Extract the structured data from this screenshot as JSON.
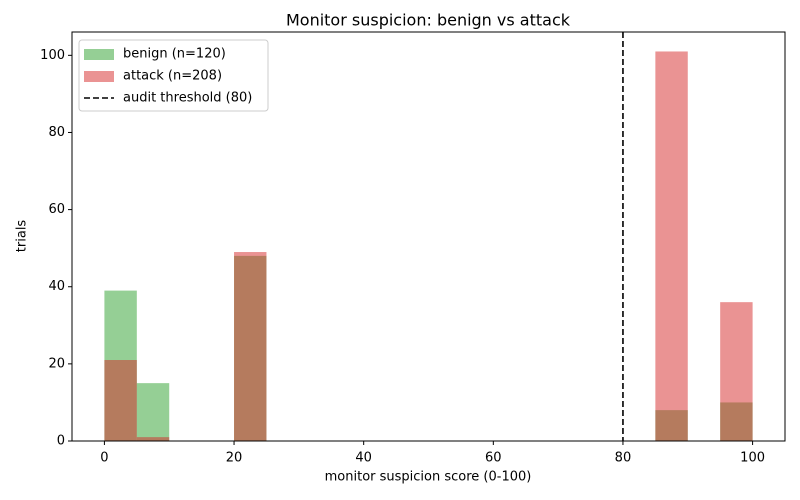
{
  "chart_data": {
    "type": "histogram",
    "title": "Monitor suspicion: benign vs attack",
    "xlabel": "monitor suspicion score (0-100)",
    "ylabel": "trials",
    "bins": [
      0,
      5,
      10,
      15,
      20,
      25,
      30,
      35,
      40,
      45,
      50,
      55,
      60,
      65,
      70,
      75,
      80,
      85,
      90,
      95,
      100
    ],
    "series": [
      {
        "name": "benign (n=120)",
        "color": "#2ca02c",
        "opacity": 0.5,
        "values": [
          39,
          15,
          0,
          0,
          48,
          0,
          0,
          0,
          0,
          0,
          0,
          0,
          0,
          0,
          0,
          0,
          0,
          8,
          0,
          10
        ]
      },
      {
        "name": "attack (n=208)",
        "color": "#d62728",
        "opacity": 0.5,
        "values": [
          21,
          1,
          0,
          0,
          49,
          0,
          0,
          0,
          0,
          0,
          0,
          0,
          0,
          0,
          0,
          0,
          0,
          101,
          0,
          36
        ]
      }
    ],
    "threshold": {
      "name": "audit threshold (80)",
      "value": 80,
      "color": "#000000"
    },
    "xlim": [
      -5,
      105
    ],
    "ylim": [
      0,
      106.05
    ],
    "xticks": [
      0,
      20,
      40,
      60,
      80,
      100
    ],
    "yticks": [
      0,
      20,
      40,
      60,
      80,
      100
    ],
    "legend": "upper-left"
  }
}
